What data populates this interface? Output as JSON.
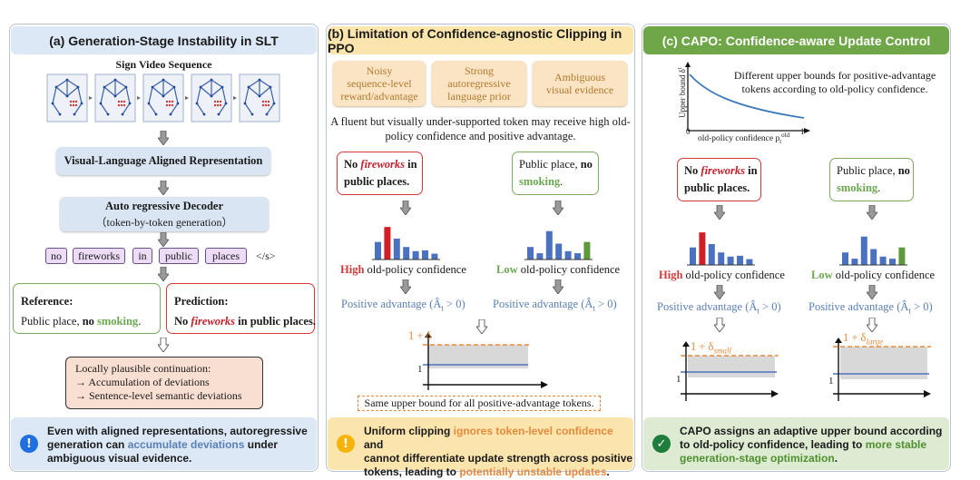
{
  "colors": {
    "blue_panel": "#dce8f6",
    "orange_panel": "#fce8b8",
    "green_panel": "#6fa648",
    "red": "#d23a3a",
    "green": "#6aa84f",
    "bar_blue": "#4a72c0",
    "bar_red": "#d21f26",
    "bar_green": "#5e9a3c",
    "orange": "#e58a3c"
  },
  "panel_a": {
    "title": "(a) Generation-Stage Instability in SLT",
    "sign_video_label": "Sign Video Sequence",
    "aligned_label": "Visual-Language Aligned Representation",
    "decoder_title": "Auto regressive Decoder",
    "decoder_sub": "（token-by-token generation）",
    "tokens": [
      "no",
      "fireworks",
      "in",
      "public",
      "places"
    ],
    "eos": "</s>",
    "reference_title": "Reference:",
    "reference_text_pre": "Public place, ",
    "reference_text_bold": "no ",
    "reference_text_green": "smoking",
    "reference_text_end": ".",
    "prediction_title": "Prediction:",
    "prediction_pre": "No ",
    "prediction_red": "fireworks",
    "prediction_post": " in public places.",
    "plausible_title": "Locally plausible continuation:",
    "plausible_items": [
      "→ Accumulation of deviations",
      "→ Sentence-level semantic deviations"
    ],
    "footer_icon": "!",
    "footer_l1": "Even with aligned representations, autoregressive",
    "footer_l2_pre": "generation can ",
    "footer_l2_hl": "accumulate deviations",
    "footer_l2_post": " under",
    "footer_l3": "ambiguous visual evidence."
  },
  "panel_b": {
    "title": "(b) Limitation of Confidence-agnostic Clipping in PPO",
    "factors": [
      [
        "Noisy",
        "sequence-level",
        "reward/advantage"
      ],
      [
        "Strong",
        "autoregressive",
        "language prior"
      ],
      [
        "Ambiguous",
        "visual evidence"
      ]
    ],
    "desc_l1": "A fluent but visually under-supported token may receive high old-",
    "desc_l2": "policy confidence and positive advantage.",
    "left_l1_pre": "No ",
    "left_red": "fireworks",
    "left_l1_post": " in",
    "left_l2": "public places.",
    "right_l1": "Public place, ",
    "right_l1_bold": "no",
    "right_green": "smoking",
    "right_end": ".",
    "conf_left_hl": "High",
    "conf_right_hl": "Low",
    "conf_rest": " old-policy confidence",
    "adv": "Positive advantage (Â",
    "adv_sub": "t",
    "adv_end": " > 0)",
    "bound_label": "1 + δ",
    "one_label": "1",
    "same_bound": "Same upper bound for all positive-advantage tokens.",
    "footer_icon": "!",
    "footer_l1_pre": "Uniform clipping ",
    "footer_l1_hl": "ignores token-level confidence",
    "footer_l1_post": " and",
    "footer_l2": "cannot differentiate update strength across positive",
    "footer_l3_pre": "tokens, leading to ",
    "footer_l3_hl": "potentially unstable updates",
    "footer_l3_post": "."
  },
  "panel_c": {
    "title": "(c) CAPO: Confidence-aware Update Control",
    "curve_ylabel": "Upper bound δ",
    "curve_ylabel_sub": "t",
    "curve_xlabel": "old-policy confidence p",
    "curve_xlabel_sub": "t",
    "curve_xlabel_sup": "old",
    "tick_0": "0",
    "tick_1": "1",
    "curve_desc_l1": "Different upper bounds for positive-advantage",
    "curve_desc_l2": "tokens according to old-policy confidence.",
    "left_l1_pre": "No ",
    "left_red": "fireworks",
    "left_l1_post": " in",
    "left_l2": "public places.",
    "right_l1": "Public place, ",
    "right_l1_bold": "no",
    "right_green": "smoking",
    "right_end": ".",
    "conf_left_hl": "High",
    "conf_right_hl": "Low",
    "conf_rest": " old-policy confidence",
    "adv": "Positive advantage (Â",
    "adv_sub": "t",
    "adv_end": " > 0)",
    "bound_small": "1 + δ",
    "bound_small_sub": "small",
    "bound_large": "1 + δ",
    "bound_large_sub": "large",
    "one_label": "1",
    "footer_icon": "✓",
    "footer_l1": "CAPO assigns an adaptive upper bound according",
    "footer_l2_pre": "to old-policy confidence, leading to ",
    "footer_l2_hl": "more stable",
    "footer_l3_hl": "generation-stage optimization",
    "footer_l3_post": "."
  },
  "hist_left": [
    {
      "v": 0.42,
      "c": "blue"
    },
    {
      "v": 0.78,
      "c": "red"
    },
    {
      "v": 0.5,
      "c": "blue"
    },
    {
      "v": 0.3,
      "c": "blue"
    },
    {
      "v": 0.2,
      "c": "blue"
    },
    {
      "v": 0.22,
      "c": "blue"
    },
    {
      "v": 0.14,
      "c": "blue"
    }
  ],
  "hist_right": [
    {
      "v": 0.3,
      "c": "blue"
    },
    {
      "v": 0.15,
      "c": "blue"
    },
    {
      "v": 0.68,
      "c": "blue"
    },
    {
      "v": 0.38,
      "c": "blue"
    },
    {
      "v": 0.2,
      "c": "blue"
    },
    {
      "v": 0.15,
      "c": "blue"
    },
    {
      "v": 0.42,
      "c": "green"
    }
  ]
}
